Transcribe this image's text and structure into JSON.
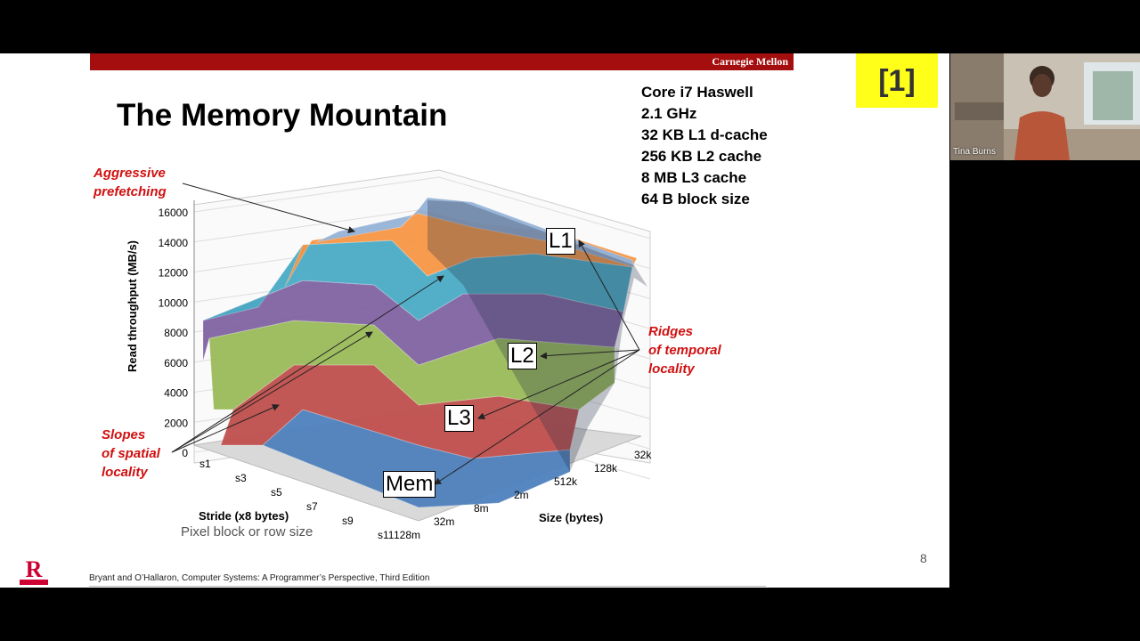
{
  "slide": {
    "header_brand": "Carnegie Mellon",
    "title": "The Memory Mountain",
    "specs": [
      "Core i7 Haswell",
      "2.1 GHz",
      "32 KB L1 d-cache",
      "256 KB L2 cache",
      "8 MB L3 cache",
      "64 B block size"
    ],
    "annotations": {
      "prefetch": [
        "Aggressive",
        "prefetching"
      ],
      "temporal": [
        "Ridges",
        "of temporal",
        "locality"
      ],
      "spatial": [
        "Slopes",
        "of spatial",
        "locality"
      ]
    },
    "labels": {
      "l1": "L1",
      "l2": "L2",
      "l3": "L3",
      "mem": "Mem"
    },
    "pixel_note": "Pixel block or row size",
    "page_number": "8",
    "footer": "Bryant and O’Hallaron, Computer Systems: A Programmer’s Perspective, Third Edition",
    "logo_text": "RUTGERS UNIVERSITY"
  },
  "chart_data": {
    "type": "surface3d",
    "title": "",
    "zlabel": "Read throughput (MB/s)",
    "zlim": [
      0,
      16000
    ],
    "z_ticks": [
      "0",
      "2000",
      "4000",
      "6000",
      "8000",
      "10000",
      "12000",
      "14000",
      "16000"
    ],
    "stride_label": "Stride (x8 bytes)",
    "stride_ticks": [
      "s1",
      "s3",
      "s5",
      "s7",
      "s9",
      "s11"
    ],
    "size_label": "Size (bytes)",
    "size_ticks": [
      "128m",
      "32m",
      "8m",
      "2m",
      "512k",
      "128k",
      "32k"
    ],
    "band_colors": [
      "#4f81bd",
      "#c0504d",
      "#9bbb59",
      "#8064a2",
      "#4bacc6",
      "#f79646",
      "#95b3d7"
    ]
  },
  "meeting": {
    "slide_number": "[1]",
    "participant_name": "Tina Burns"
  }
}
